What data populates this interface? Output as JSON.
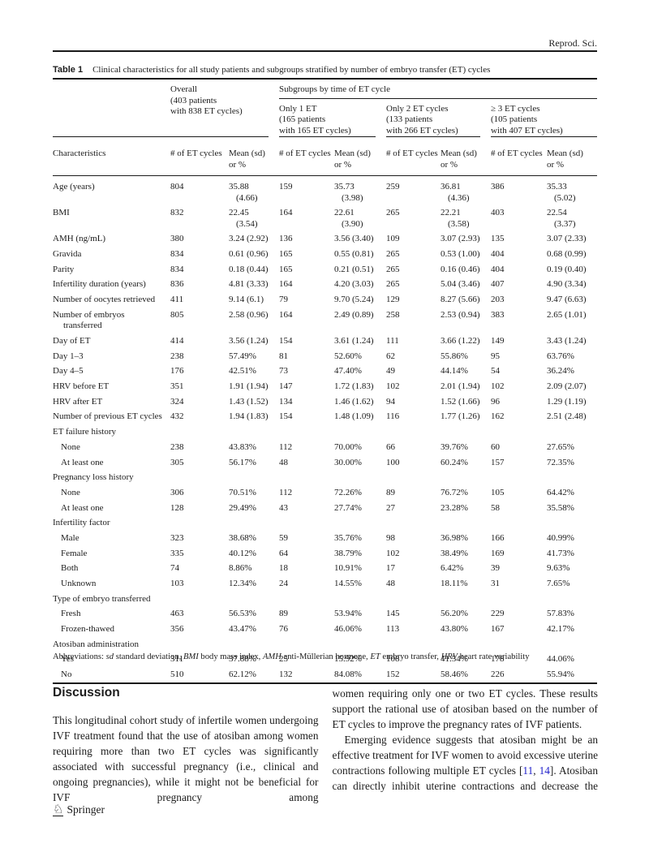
{
  "journal": {
    "header": "Reprod. Sci."
  },
  "table": {
    "label": "Table 1",
    "caption": "Clinical characteristics for all study patients and subgroups stratified by number of embryo transfer (ET) cycles",
    "overall_header": "Overall\n(403 patients\nwith 838 ET cycles)",
    "subgroups_title": "Subgroups by time of ET cycle",
    "groups": [
      "Only 1 ET\n(165 patients\nwith 165 ET cycles)",
      "Only 2 ET cycles\n(133 patients\nwith 266 ET cycles)",
      "≥ 3 ET cycles\n(105 patients\nwith 407 ET cycles)"
    ],
    "col_characteristics": "Characteristics",
    "col_n": "# of ET cycles",
    "col_mean": "Mean (sd)\nor %",
    "rows": [
      {
        "type": "data",
        "indent": false,
        "label": "Age (years)",
        "values": [
          "804",
          "35.88\n(4.66)",
          "159",
          "35.73\n(3.98)",
          "259",
          "36.81\n(4.36)",
          "386",
          "35.33\n(5.02)"
        ]
      },
      {
        "type": "data",
        "indent": false,
        "label": "BMI",
        "values": [
          "832",
          "22.45\n(3.54)",
          "164",
          "22.61\n(3.90)",
          "265",
          "22.21\n(3.58)",
          "403",
          "22.54\n(3.37)"
        ]
      },
      {
        "type": "data",
        "indent": false,
        "label": "AMH (ng/mL)",
        "values": [
          "380",
          "3.24 (2.92)",
          "136",
          "3.56 (3.40)",
          "109",
          "3.07 (2.93)",
          "135",
          "3.07 (2.33)"
        ]
      },
      {
        "type": "data",
        "indent": false,
        "label": "Gravida",
        "values": [
          "834",
          "0.61 (0.96)",
          "165",
          "0.55 (0.81)",
          "265",
          "0.53 (1.00)",
          "404",
          "0.68 (0.99)"
        ]
      },
      {
        "type": "data",
        "indent": false,
        "label": "Parity",
        "values": [
          "834",
          "0.18 (0.44)",
          "165",
          "0.21 (0.51)",
          "265",
          "0.16 (0.46)",
          "404",
          "0.19 (0.40)"
        ]
      },
      {
        "type": "data",
        "indent": false,
        "label": "Infertility duration (years)",
        "values": [
          "836",
          "4.81 (3.33)",
          "164",
          "4.20 (3.03)",
          "265",
          "5.04 (3.46)",
          "407",
          "4.90 (3.34)"
        ]
      },
      {
        "type": "data",
        "indent": false,
        "label": "Number of oocytes retrieved",
        "values": [
          "411",
          "9.14 (6.1)",
          "79",
          "9.70 (5.24)",
          "129",
          "8.27 (5.66)",
          "203",
          "9.47 (6.63)"
        ]
      },
      {
        "type": "data",
        "indent": false,
        "label": "Number of embryos\ntransferred",
        "values": [
          "805",
          "2.58 (0.96)",
          "164",
          "2.49 (0.89)",
          "258",
          "2.53 (0.94)",
          "383",
          "2.65 (1.01)"
        ]
      },
      {
        "type": "data",
        "indent": false,
        "label": "Day of ET",
        "values": [
          "414",
          "3.56 (1.24)",
          "154",
          "3.61 (1.24)",
          "111",
          "3.66 (1.22)",
          "149",
          "3.43 (1.24)"
        ]
      },
      {
        "type": "data",
        "indent": false,
        "label": "Day 1–3",
        "values": [
          "238",
          "57.49%",
          "81",
          "52.60%",
          "62",
          "55.86%",
          "95",
          "63.76%"
        ]
      },
      {
        "type": "data",
        "indent": false,
        "label": "Day 4–5",
        "values": [
          "176",
          "42.51%",
          "73",
          "47.40%",
          "49",
          "44.14%",
          "54",
          "36.24%"
        ]
      },
      {
        "type": "data",
        "indent": false,
        "label": "HRV before ET",
        "values": [
          "351",
          "1.91 (1.94)",
          "147",
          "1.72 (1.83)",
          "102",
          "2.01 (1.94)",
          "102",
          "2.09 (2.07)"
        ]
      },
      {
        "type": "data",
        "indent": false,
        "label": "HRV after ET",
        "values": [
          "324",
          "1.43 (1.52)",
          "134",
          "1.46 (1.62)",
          "94",
          "1.52 (1.66)",
          "96",
          "1.29 (1.19)"
        ]
      },
      {
        "type": "data",
        "indent": false,
        "label": "Number of previous ET cycles",
        "values": [
          "432",
          "1.94 (1.83)",
          "154",
          "1.48 (1.09)",
          "116",
          "1.77 (1.26)",
          "162",
          "2.51 (2.48)"
        ]
      },
      {
        "type": "section",
        "label": "ET failure history"
      },
      {
        "type": "data",
        "indent": true,
        "label": "None",
        "values": [
          "238",
          "43.83%",
          "112",
          "70.00%",
          "66",
          "39.76%",
          "60",
          "27.65%"
        ]
      },
      {
        "type": "data",
        "indent": true,
        "label": "At least one",
        "values": [
          "305",
          "56.17%",
          "48",
          "30.00%",
          "100",
          "60.24%",
          "157",
          "72.35%"
        ]
      },
      {
        "type": "section",
        "label": "Pregnancy loss history"
      },
      {
        "type": "data",
        "indent": true,
        "label": "None",
        "values": [
          "306",
          "70.51%",
          "112",
          "72.26%",
          "89",
          "76.72%",
          "105",
          "64.42%"
        ]
      },
      {
        "type": "data",
        "indent": true,
        "label": "At least one",
        "values": [
          "128",
          "29.49%",
          "43",
          "27.74%",
          "27",
          "23.28%",
          "58",
          "35.58%"
        ]
      },
      {
        "type": "section",
        "label": "Infertility factor"
      },
      {
        "type": "data",
        "indent": true,
        "label": "Male",
        "values": [
          "323",
          "38.68%",
          "59",
          "35.76%",
          "98",
          "36.98%",
          "166",
          "40.99%"
        ]
      },
      {
        "type": "data",
        "indent": true,
        "label": "Female",
        "values": [
          "335",
          "40.12%",
          "64",
          "38.79%",
          "102",
          "38.49%",
          "169",
          "41.73%"
        ]
      },
      {
        "type": "data",
        "indent": true,
        "label": "Both",
        "values": [
          "74",
          "8.86%",
          "18",
          "10.91%",
          "17",
          "6.42%",
          "39",
          "9.63%"
        ]
      },
      {
        "type": "data",
        "indent": true,
        "label": "Unknown",
        "values": [
          "103",
          "12.34%",
          "24",
          "14.55%",
          "48",
          "18.11%",
          "31",
          "7.65%"
        ]
      },
      {
        "type": "section",
        "label": "Type of embryo transferred"
      },
      {
        "type": "data",
        "indent": true,
        "label": "Fresh",
        "values": [
          "463",
          "56.53%",
          "89",
          "53.94%",
          "145",
          "56.20%",
          "229",
          "57.83%"
        ]
      },
      {
        "type": "data",
        "indent": true,
        "label": "Frozen-thawed",
        "values": [
          "356",
          "43.47%",
          "76",
          "46.06%",
          "113",
          "43.80%",
          "167",
          "42.17%"
        ]
      },
      {
        "type": "section",
        "label": "Atosiban administration"
      },
      {
        "type": "data",
        "indent": true,
        "label": "Yes",
        "values": [
          "311",
          "37.88%",
          "25",
          "15.92%",
          "108",
          "41.54%",
          "178",
          "44.06%"
        ]
      },
      {
        "type": "data",
        "indent": true,
        "label": "No",
        "values": [
          "510",
          "62.12%",
          "132",
          "84.08%",
          "152",
          "58.46%",
          "226",
          "55.94%"
        ]
      }
    ]
  },
  "footnote": {
    "segments": [
      {
        "t": "Abbreviations: ",
        "i": false
      },
      {
        "t": "sd",
        "i": true
      },
      {
        "t": " standard deviation, ",
        "i": false
      },
      {
        "t": "BMI",
        "i": true
      },
      {
        "t": " body mass index, ",
        "i": false
      },
      {
        "t": "AMH",
        "i": true
      },
      {
        "t": " anti-Müllerian hormone, ",
        "i": false
      },
      {
        "t": "ET",
        "i": true
      },
      {
        "t": " embryo transfer, ",
        "i": false
      },
      {
        "t": "HRV",
        "i": true
      },
      {
        "t": " heart rate variability",
        "i": false
      }
    ]
  },
  "discussion": {
    "heading": "Discussion",
    "left_paragraph": "This longitudinal cohort study of infertile women undergoing IVF treatment found that the use of atosiban among women requiring more than two ET cycles was significantly associated with successful pregnancy (i.e., clinical and ongoing pregnancies), while it might not be beneficial for IVF pregnancy among",
    "right_paragraph_1": "women requiring only one or two ET cycles. These results support the rational use of atosiban based on the number of ET cycles to improve the pregnancy rates of IVF patients.",
    "right_paragraph_2": {
      "segments": [
        {
          "t": "Emerging evidence suggests that atosiban might be an effective treatment for IVF women to avoid excessive uterine contractions following multiple ET cycles [",
          "link": false
        },
        {
          "t": "11",
          "link": true
        },
        {
          "t": ", ",
          "link": false
        },
        {
          "t": "14",
          "link": true
        },
        {
          "t": "]. Atosiban can directly inhibit uterine contractions and decrease the",
          "link": false
        }
      ]
    }
  },
  "footer": {
    "publisher": "Springer",
    "logo_glyph": "♘"
  },
  "colors": {
    "link": "#2424cc",
    "text": "#1c1c1c"
  }
}
